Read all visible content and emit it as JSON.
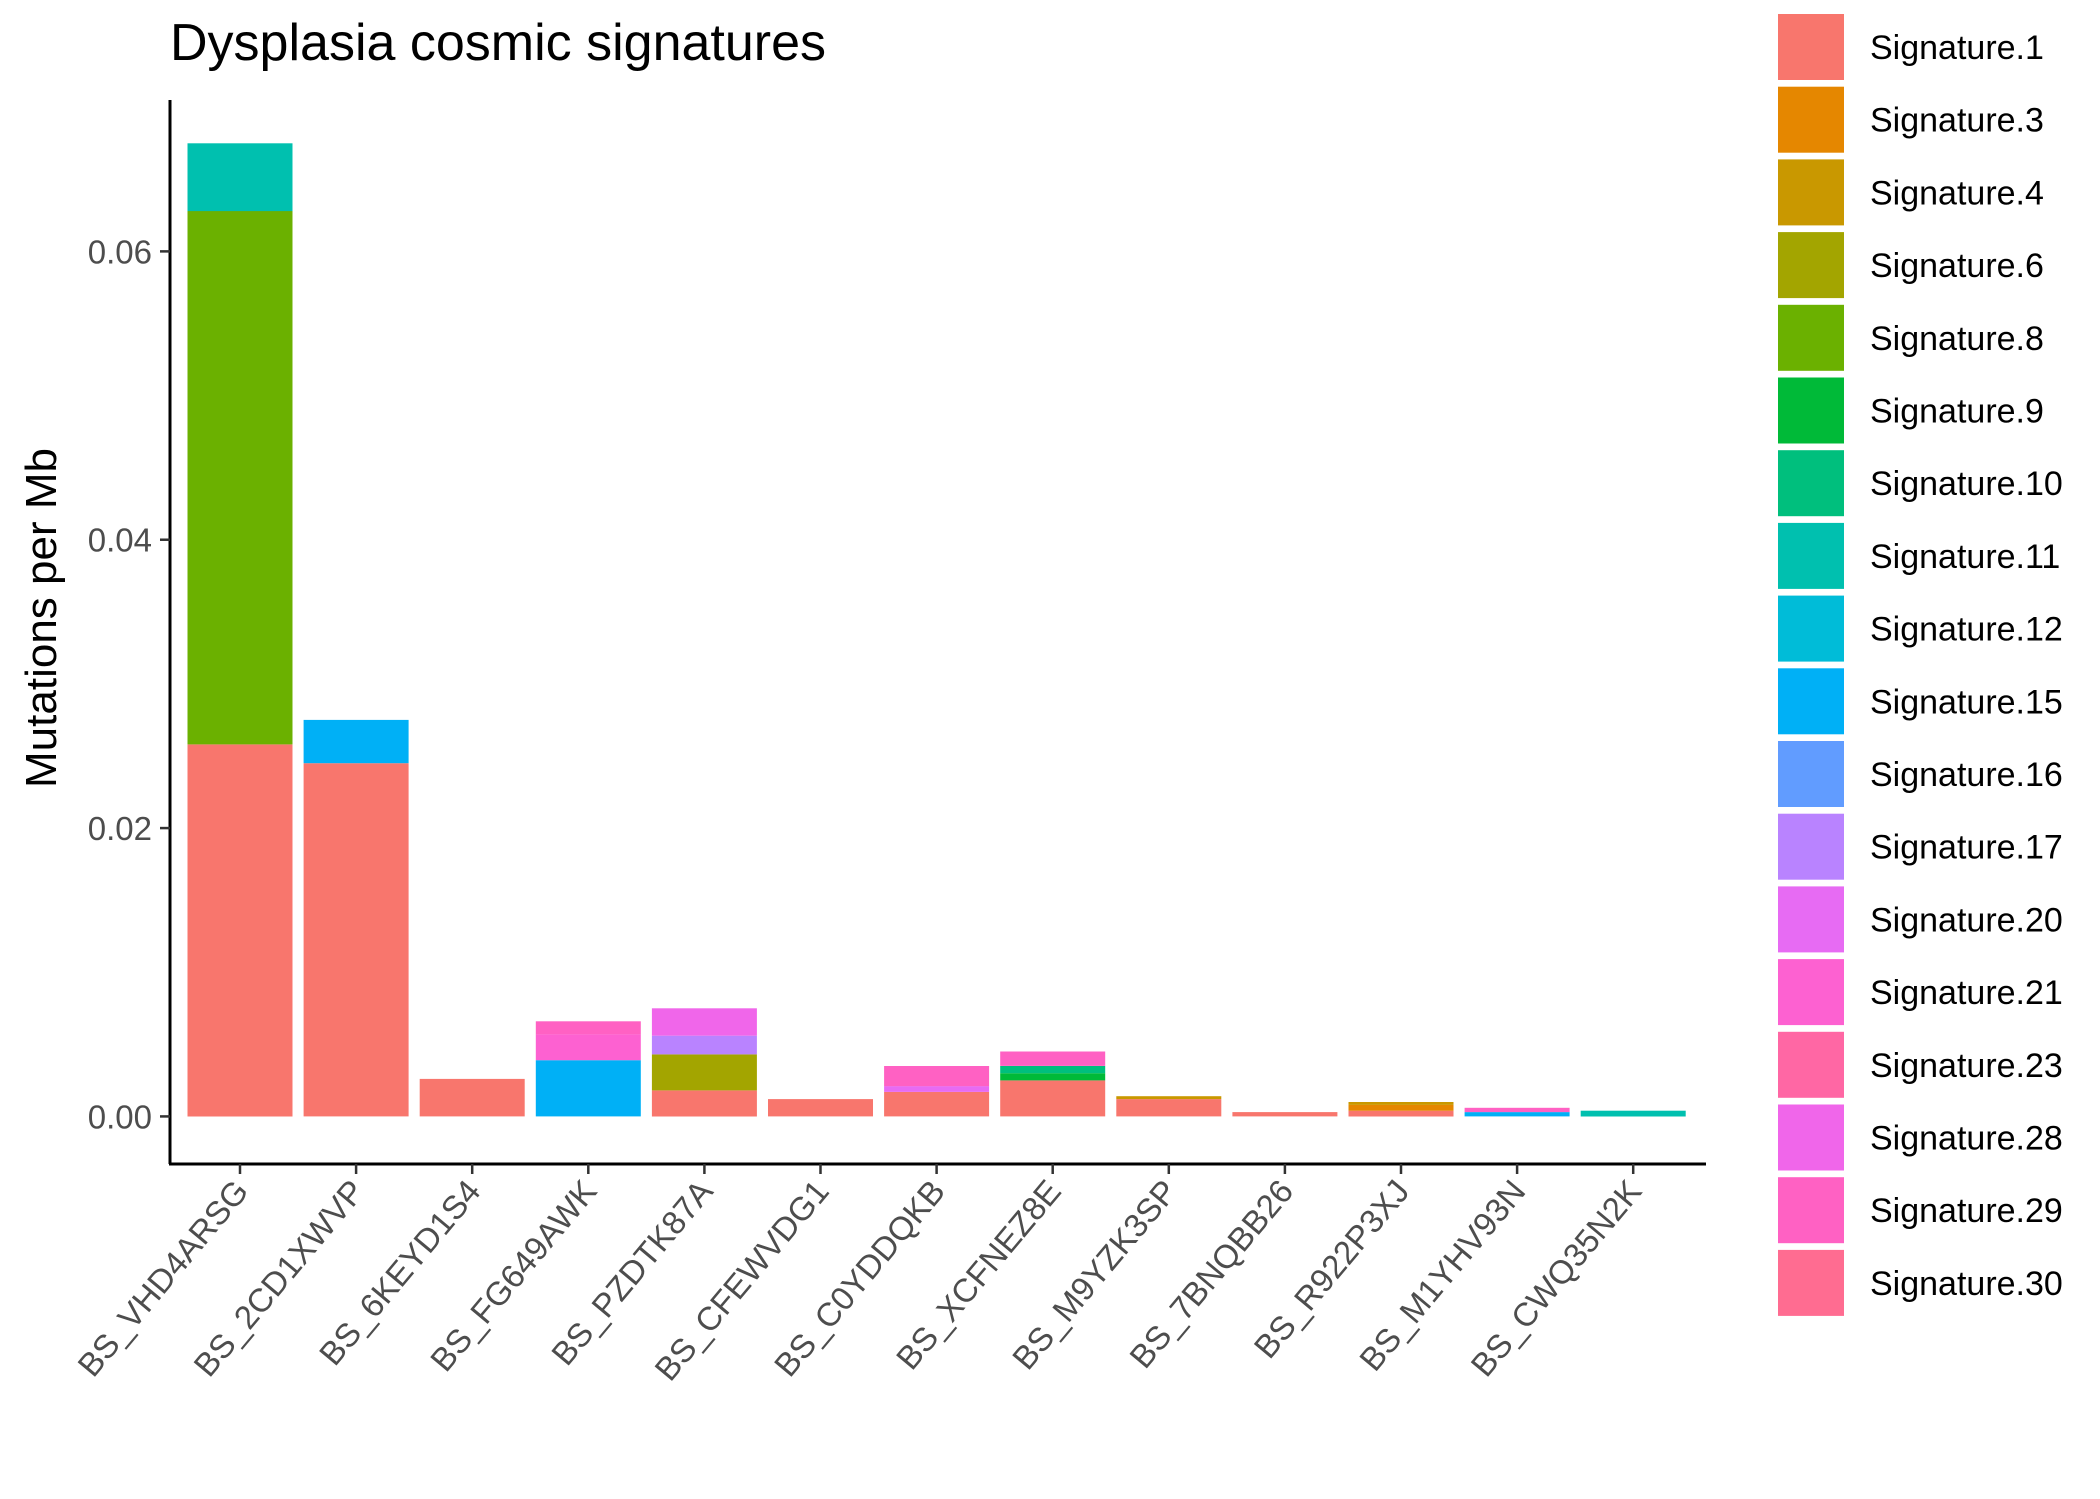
{
  "chart_data": {
    "type": "bar",
    "stacked": true,
    "title": "Dysplasia cosmic signatures",
    "xlabel": "",
    "ylabel": "Mutations per Mb",
    "ylim": [
      -0.0033,
      0.0705
    ],
    "yticks": [
      0.0,
      0.02,
      0.04,
      0.06
    ],
    "ytick_labels": [
      "0.00",
      "0.02",
      "0.04",
      "0.06"
    ],
    "grid": false,
    "legend_position": "right",
    "categories": [
      "BS_VHD4ARSG",
      "BS_2CD1XWVP",
      "BS_6KEYD1S4",
      "BS_FG649AWK",
      "BS_PZDTK87A",
      "BS_CFEWVDG1",
      "BS_C0YDDQKB",
      "BS_XCFNEZ8E",
      "BS_M9YZK3SP",
      "BS_7BNQBB26",
      "BS_R922P3XJ",
      "BS_M1YHV93N",
      "BS_CWQ35N2K"
    ],
    "series": [
      {
        "name": "Signature.1",
        "color": "#F8766D",
        "values": [
          0.0258,
          0.0245,
          0.0026,
          0,
          0.0018,
          0.0012,
          0.0017,
          0.0025,
          0.0012,
          0.0003,
          0.0004,
          0,
          0
        ]
      },
      {
        "name": "Signature.3",
        "color": "#E58700",
        "values": [
          0,
          0,
          0,
          0,
          0,
          0,
          0,
          0,
          0,
          0,
          0.0004,
          0,
          0
        ]
      },
      {
        "name": "Signature.4",
        "color": "#C99800",
        "values": [
          0,
          0,
          0,
          0,
          0,
          0,
          0,
          0,
          0.0002,
          0,
          0.0002,
          0,
          0
        ]
      },
      {
        "name": "Signature.6",
        "color": "#A3A500",
        "values": [
          0,
          0,
          0,
          0,
          0.0025,
          0,
          0,
          0,
          0,
          0,
          0,
          0,
          0
        ]
      },
      {
        "name": "Signature.8",
        "color": "#6BB100",
        "values": [
          0.037,
          0,
          0,
          0,
          0,
          0,
          0,
          0,
          0,
          0,
          0,
          0,
          0
        ]
      },
      {
        "name": "Signature.9",
        "color": "#00BA38",
        "values": [
          0,
          0,
          0,
          0,
          0,
          0,
          0,
          0.0005,
          0,
          0,
          0,
          0,
          0
        ]
      },
      {
        "name": "Signature.10",
        "color": "#00BF7D",
        "values": [
          0,
          0,
          0,
          0,
          0,
          0,
          0,
          0.0005,
          0,
          0,
          0,
          0,
          0
        ]
      },
      {
        "name": "Signature.11",
        "color": "#00C0AF",
        "values": [
          0.0047,
          0,
          0,
          0,
          0,
          0,
          0,
          0,
          0,
          0,
          0,
          0,
          0.0004
        ]
      },
      {
        "name": "Signature.12",
        "color": "#00BCD8",
        "values": [
          0,
          0,
          0,
          0,
          0,
          0,
          0,
          0,
          0,
          0,
          0,
          0,
          0
        ]
      },
      {
        "name": "Signature.15",
        "color": "#00B0F6",
        "values": [
          0,
          0.003,
          0,
          0.0039,
          0,
          0,
          0,
          0,
          0,
          0,
          0,
          0.0003,
          0
        ]
      },
      {
        "name": "Signature.16",
        "color": "#619CFF",
        "values": [
          0,
          0,
          0,
          0,
          0,
          0,
          0,
          0,
          0,
          0,
          0,
          0,
          0
        ]
      },
      {
        "name": "Signature.17",
        "color": "#B983FF",
        "values": [
          0,
          0,
          0,
          0,
          0.0013,
          0,
          0,
          0,
          0,
          0,
          0,
          0,
          0
        ]
      },
      {
        "name": "Signature.20",
        "color": "#E76BF3",
        "values": [
          0,
          0,
          0,
          0,
          0,
          0,
          0.0004,
          0,
          0,
          0,
          0,
          0,
          0
        ]
      },
      {
        "name": "Signature.21",
        "color": "#FD61D1",
        "values": [
          0,
          0,
          0,
          0.0018,
          0,
          0,
          0,
          0,
          0,
          0,
          0,
          0,
          0
        ]
      },
      {
        "name": "Signature.23",
        "color": "#FF67A4",
        "values": [
          0,
          0,
          0,
          0,
          0,
          0,
          0,
          0,
          0,
          0,
          0,
          0,
          0
        ]
      },
      {
        "name": "Signature.28",
        "color": "#F066EA",
        "values": [
          0,
          0,
          0,
          0,
          0.0019,
          0,
          0,
          0,
          0,
          0,
          0,
          0,
          0
        ]
      },
      {
        "name": "Signature.29",
        "color": "#FF61C3",
        "values": [
          0,
          0,
          0,
          0.0009,
          0,
          0,
          0.0014,
          0.001,
          0,
          0,
          0,
          0.0003,
          0
        ]
      },
      {
        "name": "Signature.30",
        "color": "#FF6C91",
        "values": [
          0,
          0,
          0,
          0,
          0,
          0,
          0,
          0,
          0,
          0,
          0,
          0,
          0
        ]
      }
    ]
  }
}
